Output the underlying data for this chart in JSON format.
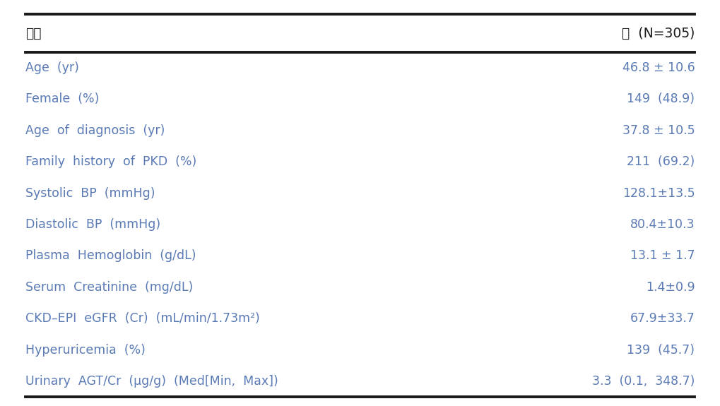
{
  "header_col1": "항목",
  "header_col2": "값  (N=305)",
  "rows": [
    [
      "Age  (yr)",
      "46.8 ± 10.6"
    ],
    [
      "Female  (%)",
      "149  (48.9)"
    ],
    [
      "Age  of  diagnosis  (yr)",
      "37.8 ± 10.5"
    ],
    [
      "Family  history  of  PKD  (%)",
      "211  (69.2)"
    ],
    [
      "Systolic  BP  (mmHg)",
      "128.1±13.5"
    ],
    [
      "Diastolic  BP  (mmHg)",
      "80.4±10.3"
    ],
    [
      "Plasma  Hemoglobin  (g/dL)",
      "13.1 ± 1.7"
    ],
    [
      "Serum  Creatinine  (mg/dL)",
      "1.4±0.9"
    ],
    [
      "CKD–EPI  eGFR  (Cr)  (mL/min/1.73m²)",
      "67.9±33.7"
    ],
    [
      "Hyperuricemia  (%)",
      "139  (45.7)"
    ],
    [
      "Urinary  AGT/Cr  (μg/g)  (Med[Min,  Max])",
      "3.3  (0.1,  348.7)"
    ]
  ],
  "left_color": "#5a7ab5",
  "right_color": "#5a7ab5",
  "header_color": "#1a1a1a",
  "bg_color": "#ffffff",
  "line_color": "#1a1a1a",
  "font_size": 12.5,
  "header_font_size": 13.5
}
